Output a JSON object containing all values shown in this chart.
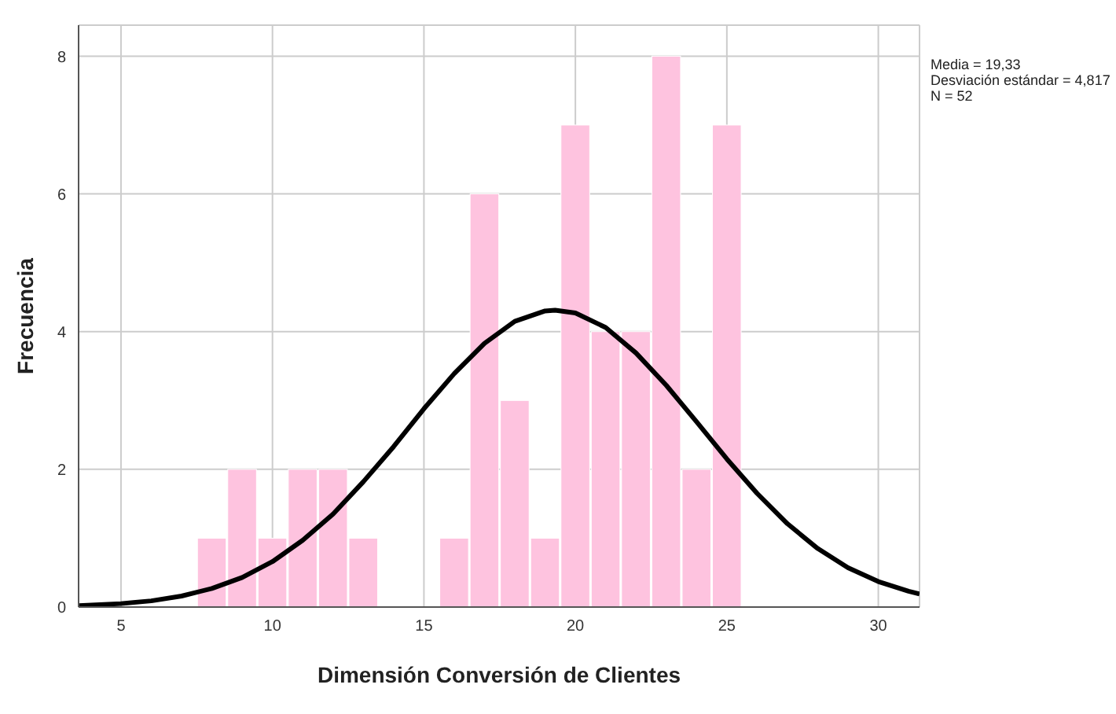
{
  "chart_data": {
    "type": "histogram",
    "xlabel": "Dimensión Conversión de Clientes",
    "ylabel": "Frecuencia",
    "bins": [
      7.5,
      8.5,
      9.5,
      10.5,
      11.5,
      12.5,
      13.5,
      14.5,
      15.5,
      16.5,
      17.5,
      18.5,
      19.5,
      20.5,
      21.5,
      22.5,
      23.5,
      24.5,
      25.5
    ],
    "values": [
      1,
      2,
      1,
      2,
      2,
      1,
      0,
      0,
      1,
      6,
      3,
      1,
      7,
      4,
      4,
      8,
      2,
      7
    ],
    "color": "#fec3df",
    "series": [
      {
        "type": "line",
        "color": "#000000",
        "x": [
          3.6,
          5,
          6,
          7,
          8,
          9,
          10,
          11,
          12,
          13,
          14,
          15,
          16,
          17,
          18,
          19,
          19.33,
          20,
          21,
          22,
          23,
          24,
          25,
          26,
          27,
          28,
          29,
          30,
          31,
          31.36
        ],
        "values": [
          0.02,
          0.05,
          0.09,
          0.16,
          0.27,
          0.43,
          0.66,
          0.97,
          1.35,
          1.82,
          2.33,
          2.88,
          3.39,
          3.83,
          4.15,
          4.3,
          4.31,
          4.27,
          4.06,
          3.69,
          3.22,
          2.69,
          2.15,
          1.65,
          1.21,
          0.85,
          0.57,
          0.37,
          0.23,
          0.19
        ]
      }
    ],
    "xlim": [
      3.6,
      31.36
    ],
    "xticks": [
      5,
      10,
      15,
      20,
      25,
      30
    ],
    "ylim": [
      0,
      8.45
    ],
    "yticks": [
      0,
      2,
      4,
      6,
      8
    ],
    "grid": true,
    "annotations": [
      "Media = 19,33",
      "Desviación estándar = 4,817",
      "N = 52"
    ]
  }
}
